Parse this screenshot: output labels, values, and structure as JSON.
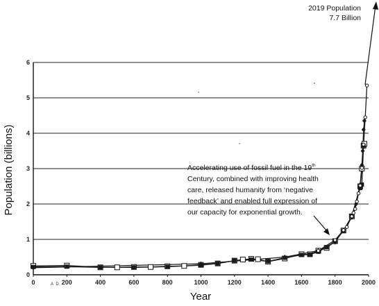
{
  "chart_data": {
    "type": "line",
    "title": "",
    "xlabel": "Year",
    "ylabel": "Population (billions)",
    "xlim": [
      0,
      2000
    ],
    "ylim": [
      0,
      6
    ],
    "x_ticks": [
      0,
      200,
      400,
      600,
      800,
      1000,
      1200,
      1400,
      1600,
      1800,
      2000
    ],
    "y_ticks": [
      0,
      1,
      2,
      3,
      4,
      5,
      6
    ],
    "x_tick_note": "A D",
    "grid": "horizontal",
    "series": [
      {
        "marker": "open-square",
        "x": [
          0,
          200,
          400,
          500,
          600,
          700,
          800,
          900,
          1000,
          1100,
          1200,
          1250,
          1300,
          1340,
          1400,
          1500,
          1600,
          1650,
          1700,
          1750,
          1800,
          1850,
          1900,
          1950,
          1960,
          1970,
          1975
        ],
        "y": [
          0.25,
          0.26,
          0.21,
          0.21,
          0.22,
          0.22,
          0.24,
          0.25,
          0.28,
          0.32,
          0.4,
          0.43,
          0.45,
          0.44,
          0.37,
          0.46,
          0.58,
          0.58,
          0.68,
          0.76,
          0.95,
          1.25,
          1.65,
          2.5,
          3.0,
          3.65,
          3.7
        ]
      },
      {
        "marker": "filled-square",
        "x": [
          0,
          200,
          400,
          600,
          800,
          1000,
          1100,
          1200,
          1300,
          1400,
          1500,
          1600,
          1650,
          1700,
          1750,
          1800,
          1850,
          1900,
          1950,
          1960,
          1970
        ],
        "y": [
          0.22,
          0.23,
          0.21,
          0.21,
          0.23,
          0.27,
          0.32,
          0.4,
          0.43,
          0.38,
          0.48,
          0.56,
          0.57,
          0.65,
          0.78,
          0.95,
          1.24,
          1.66,
          2.45,
          2.55,
          3.65
        ]
      },
      {
        "marker": "filled-diamond",
        "x": [
          0,
          1000,
          1500,
          1700,
          1800,
          1850,
          1900,
          1925,
          1950,
          1960,
          1965,
          1970,
          1975
        ],
        "y": [
          0.2,
          0.31,
          0.5,
          0.68,
          0.92,
          1.26,
          1.62,
          2.0,
          2.55,
          3.1,
          3.5,
          4.1,
          4.35
        ]
      },
      {
        "marker": "open-circle",
        "x": [
          1700,
          1800,
          1850,
          1870,
          1900,
          1910,
          1920,
          1930,
          1940,
          1950,
          1960,
          1970,
          1980,
          1990
        ],
        "y": [
          0.68,
          0.98,
          1.26,
          1.35,
          1.65,
          1.75,
          1.86,
          2.07,
          2.3,
          2.52,
          3.02,
          3.68,
          4.45,
          5.35
        ]
      }
    ],
    "annotations": [
      {
        "lines": [
          "2019 Population",
          "7.7 Billion"
        ],
        "points_to": {
          "x": 2019,
          "y": 7.7
        }
      },
      {
        "lines": [
          "Accelerating use of fossil fuel in the 19",
          "Century, combined with improving health",
          "care, released humanity from ‘negative",
          "feedback’ and enabled full expression of",
          "our capacity for exponential  growth."
        ],
        "superscript": "th",
        "points_to": {
          "x": 1760,
          "y": 0.8
        }
      }
    ]
  }
}
